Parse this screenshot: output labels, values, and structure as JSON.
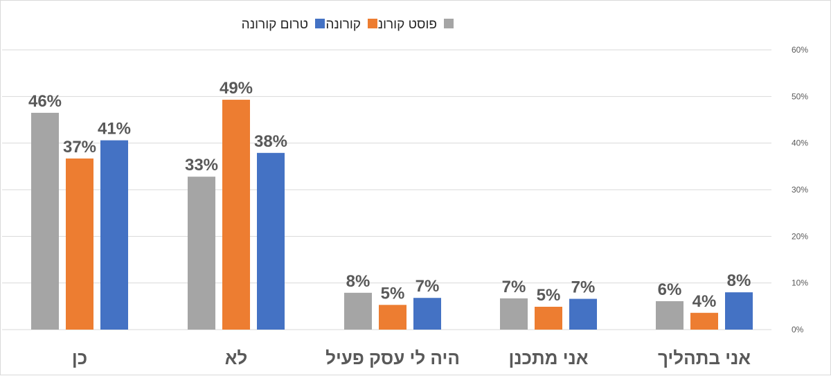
{
  "chart_data": {
    "type": "bar",
    "categories": [
      "כן",
      "לא",
      "היה לי עסק פעיל",
      "אני מתכנן",
      "אני בתהליך"
    ],
    "series": [
      {
        "name": "פוסט קורונה",
        "color": "#a5a5a5",
        "values": [
          46,
          33,
          8,
          7,
          6
        ]
      },
      {
        "name": "קורונה",
        "color": "#ed7d31",
        "values": [
          37,
          49,
          5,
          5,
          4
        ]
      },
      {
        "name": "טרום קורונה",
        "color": "#4472c4",
        "values": [
          41,
          38,
          7,
          7,
          8
        ]
      }
    ],
    "bar_values": [
      [
        46.5,
        32.8,
        7.9,
        6.7,
        6.1
      ],
      [
        36.7,
        49.3,
        5.3,
        4.9,
        3.6
      ],
      [
        40.6,
        37.9,
        6.8,
        6.6,
        8.0
      ]
    ],
    "y_ticks": [
      "0%",
      "10%",
      "20%",
      "30%",
      "40%",
      "50%",
      "60%"
    ],
    "ylim": [
      0,
      60
    ],
    "y_axis_side": "right",
    "grid": true,
    "legend_position": "top",
    "value_suffix": "%"
  }
}
